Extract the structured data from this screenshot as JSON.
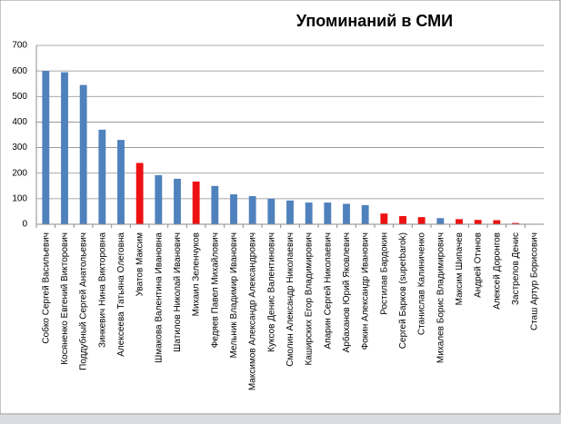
{
  "chart_data": {
    "type": "bar",
    "title": "Упоминаний в СМИ",
    "categories": [
      "Собко Сергей Васильевич",
      "Косяненко Евгений Викторович",
      "Поддубный Сергей Анатольевич",
      "Зинкевич Нина Викторовна",
      "Алексеева Татьяна Олеговна",
      "Уватов Максим",
      "Шмакова Валентина Ивановна",
      "Шатилов Николай Иванович",
      "Михаил Зеленчуков",
      "Федяев Павел Михайлович",
      "Мельник Владимир Иванович",
      "Максимов Александр Александрович",
      "Куксов Денис Валентинович",
      "Смолин Александр Николаевич",
      "Каширских Егор Владимирович",
      "Апарин Сергей Николаевич",
      "Арбаханов Юрий Яковлевич",
      "Фокин Александр Иванович",
      "Ростилав Бардокин",
      "Сергей Барков (superbarok)",
      "Станислав Калиниченко",
      "Михалев Борис Владимирович",
      "Максим Шипачев",
      "Андрей Отинов",
      "Алексей Доронгов",
      "Застрелов Денис",
      "Сташ Артур Борисович"
    ],
    "values": [
      600,
      595,
      545,
      370,
      330,
      240,
      192,
      178,
      167,
      150,
      117,
      110,
      100,
      93,
      85,
      85,
      80,
      75,
      42,
      32,
      28,
      24,
      20,
      17,
      16,
      5,
      0
    ],
    "colors": [
      "#4f81bd",
      "#4f81bd",
      "#4f81bd",
      "#4f81bd",
      "#4f81bd",
      "#ee1111",
      "#4f81bd",
      "#4f81bd",
      "#ee1111",
      "#4f81bd",
      "#4f81bd",
      "#4f81bd",
      "#4f81bd",
      "#4f81bd",
      "#4f81bd",
      "#4f81bd",
      "#4f81bd",
      "#4f81bd",
      "#ee1111",
      "#ee1111",
      "#ee1111",
      "#4f81bd",
      "#ee1111",
      "#ee1111",
      "#ee1111",
      "#ee1111",
      "#4f81bd"
    ],
    "ylim": [
      0,
      700
    ],
    "yticks": [
      0,
      100,
      200,
      300,
      400,
      500,
      600,
      700
    ],
    "grid": true
  }
}
